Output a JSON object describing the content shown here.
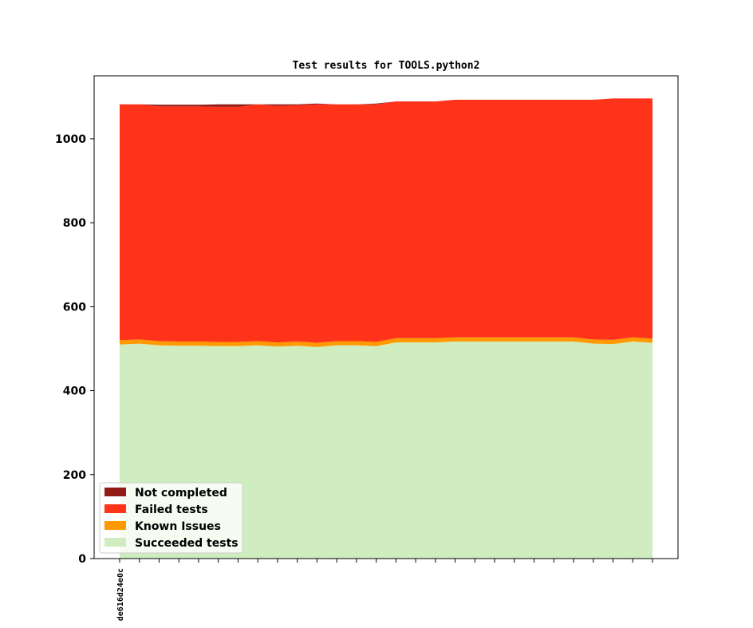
{
  "chart_data": {
    "type": "area",
    "stacked": true,
    "title": "Test results for TOOLS.python2",
    "xlabel": "",
    "ylabel": "",
    "ylim": [
      0,
      1150
    ],
    "yticks": [
      0,
      200,
      400,
      600,
      800,
      1000
    ],
    "grid": false,
    "legend_position": "lower-left",
    "x": [
      "de616d24e0c",
      "",
      "",
      "",
      "",
      "",
      "",
      "",
      "",
      "",
      "",
      "",
      "",
      "",
      "",
      "",
      "",
      "",
      "",
      "",
      "",
      "",
      "",
      "",
      "",
      "",
      "",
      ""
    ],
    "series": [
      {
        "name": "Succeeded tests",
        "color": "#d0edbf",
        "values": [
          510,
          512,
          508,
          507,
          507,
          506,
          506,
          508,
          505,
          507,
          504,
          508,
          508,
          506,
          515,
          515,
          515,
          517,
          517,
          517,
          517,
          517,
          517,
          517,
          512,
          511,
          517,
          514
        ]
      },
      {
        "name": "Known Issues",
        "color": "#fe9a00",
        "values": [
          10,
          10,
          10,
          10,
          10,
          10,
          10,
          10,
          10,
          10,
          10,
          10,
          10,
          10,
          10,
          10,
          10,
          10,
          10,
          10,
          10,
          10,
          10,
          10,
          10,
          10,
          10,
          10
        ]
      },
      {
        "name": "Failed tests",
        "color": "#ff321a",
        "values": [
          562,
          560,
          559,
          560,
          560,
          560,
          560,
          564,
          563,
          563,
          568,
          564,
          564,
          566,
          564,
          564,
          564,
          566,
          566,
          566,
          566,
          566,
          566,
          566,
          571,
          575,
          569,
          572
        ]
      },
      {
        "name": "Not completed",
        "color": "#931b17",
        "values": [
          0,
          0,
          4,
          4,
          4,
          6,
          6,
          0,
          4,
          2,
          2,
          0,
          0,
          2,
          0,
          0,
          0,
          0,
          0,
          0,
          0,
          0,
          0,
          0,
          0,
          0,
          0,
          0
        ]
      }
    ]
  }
}
